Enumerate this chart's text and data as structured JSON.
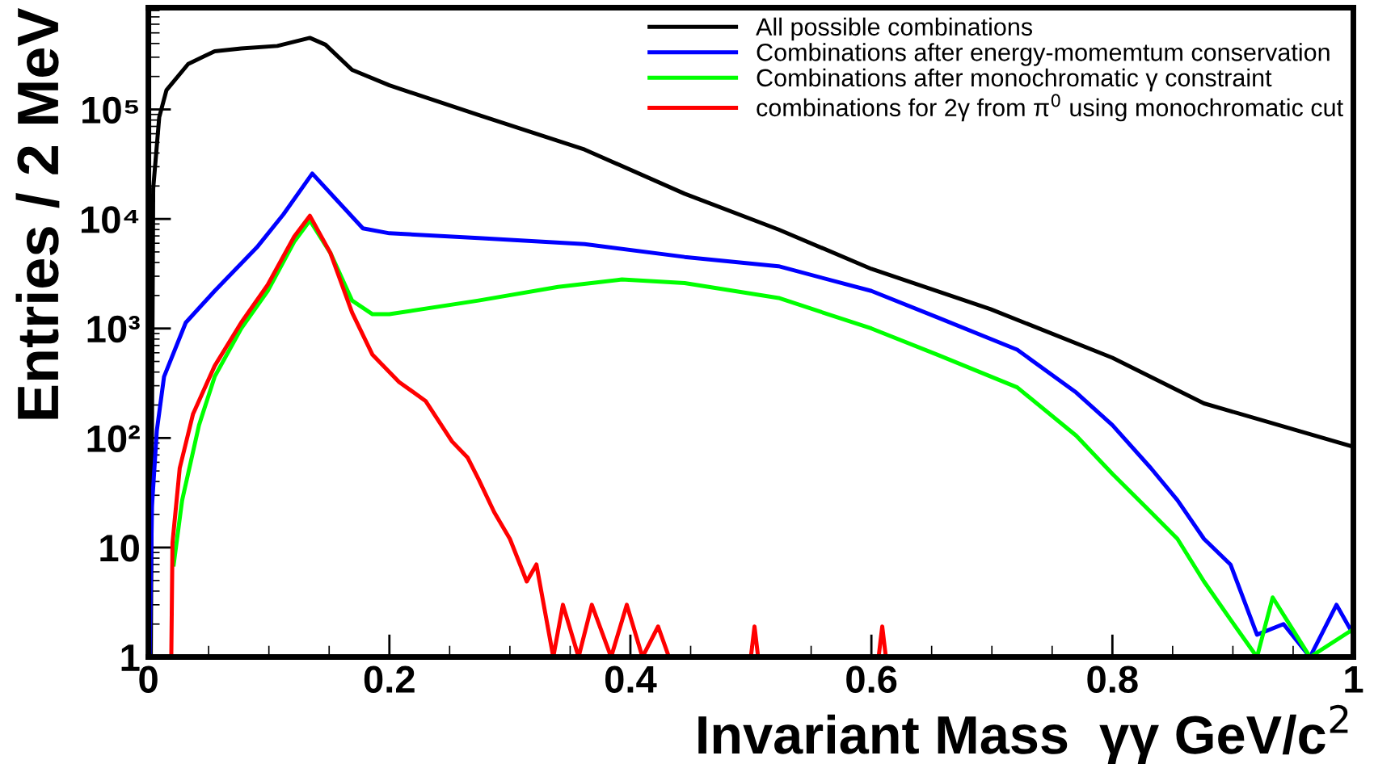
{
  "chart_data": {
    "type": "line",
    "xlabel": "Invariant Mass  γγ GeV/c$^{2}$",
    "ylabel": "Entries / 2 MeV",
    "log": "y",
    "xlim": [
      0,
      1
    ],
    "ylim": [
      1,
      850000
    ],
    "xticks": [
      0,
      0.2,
      0.4,
      0.6,
      0.8,
      1
    ],
    "yticks": [
      1,
      10,
      {
        "value": 100,
        "label": "10²"
      },
      {
        "value": 1000,
        "label": "10³"
      },
      {
        "value": 10000,
        "label": "10⁴"
      },
      {
        "value": 100000,
        "label": "10⁵"
      }
    ],
    "grid": false,
    "legend": "top right",
    "series": [
      {
        "name": "All possible combinations",
        "color": "#000000",
        "x": [
          0.002,
          0.004,
          0.009,
          0.015,
          0.033,
          0.055,
          0.077,
          0.107,
          0.134,
          0.147,
          0.169,
          0.2,
          0.274,
          0.362,
          0.445,
          0.523,
          0.6,
          0.699,
          0.8,
          0.876,
          1.0
        ],
        "values": [
          1,
          19000,
          85000,
          150000,
          260000,
          340000,
          360000,
          380000,
          450000,
          390000,
          230000,
          166000,
          89000,
          43000,
          17000,
          8000,
          3500,
          1500,
          540,
          207,
          83
        ]
      },
      {
        "name": "Combinations after energy-momemtum conservation",
        "color": "#0000ff",
        "x": [
          0.001,
          0.003,
          0.007,
          0.013,
          0.031,
          0.055,
          0.09,
          0.112,
          0.136,
          0.156,
          0.178,
          0.2,
          0.274,
          0.362,
          0.445,
          0.523,
          0.6,
          0.655,
          0.721,
          0.77,
          0.8,
          0.832,
          0.854,
          0.876,
          0.898,
          0.92,
          0.942,
          0.964,
          0.986,
          1.0
        ],
        "values": [
          1,
          24,
          117,
          363,
          1130,
          2200,
          5500,
          11000,
          26000,
          15000,
          8200,
          7400,
          6700,
          5900,
          4500,
          3700,
          2200,
          1260,
          640,
          260,
          131,
          53,
          27,
          12,
          7,
          1.6,
          2,
          1,
          3,
          1.6
        ]
      },
      {
        "name": "Combinations after monochromatic γ constraint",
        "color": "#00ff00",
        "x": [
          0.021,
          0.028,
          0.042,
          0.055,
          0.077,
          0.099,
          0.121,
          0.134,
          0.151,
          0.169,
          0.186,
          0.2,
          0.274,
          0.34,
          0.393,
          0.445,
          0.523,
          0.6,
          0.655,
          0.721,
          0.77,
          0.8,
          0.832,
          0.854,
          0.876,
          0.898,
          0.92,
          0.933,
          0.964,
          1.0
        ],
        "values": [
          7,
          27,
          131,
          363,
          1000,
          2200,
          6200,
          9700,
          4900,
          1800,
          1350,
          1350,
          1800,
          2400,
          2800,
          2600,
          1900,
          1000,
          575,
          290,
          105,
          47,
          21,
          12,
          4.9,
          2.2,
          1,
          3.5,
          1,
          1.8
        ]
      },
      {
        "name": "combinations for 2γ from π$^{0}$ using monochromatic cut",
        "color": "#ff0000",
        "x": [
          0.019,
          0.02,
          0.026,
          0.037,
          0.055,
          0.077,
          0.099,
          0.121,
          0.134,
          0.151,
          0.169,
          0.186,
          0.208,
          0.23,
          0.252,
          0.265,
          0.274,
          0.287,
          0.3,
          0.314,
          0.322,
          0.336,
          0.344,
          0.357,
          0.368,
          0.384,
          0.397,
          0.41,
          0.423,
          0.432,
          0.5,
          0.503,
          0.506,
          0.606,
          0.609,
          0.612,
          1.0
        ],
        "values": [
          1,
          11,
          53,
          165,
          455,
          1130,
          2500,
          6900,
          10700,
          4900,
          1400,
          575,
          325,
          218,
          93,
          66,
          42,
          21,
          12,
          4.9,
          7,
          1,
          3,
          1,
          3,
          1,
          3,
          1,
          1.9,
          1,
          1,
          1.9,
          1,
          1,
          1.9,
          1,
          1
        ]
      }
    ]
  }
}
